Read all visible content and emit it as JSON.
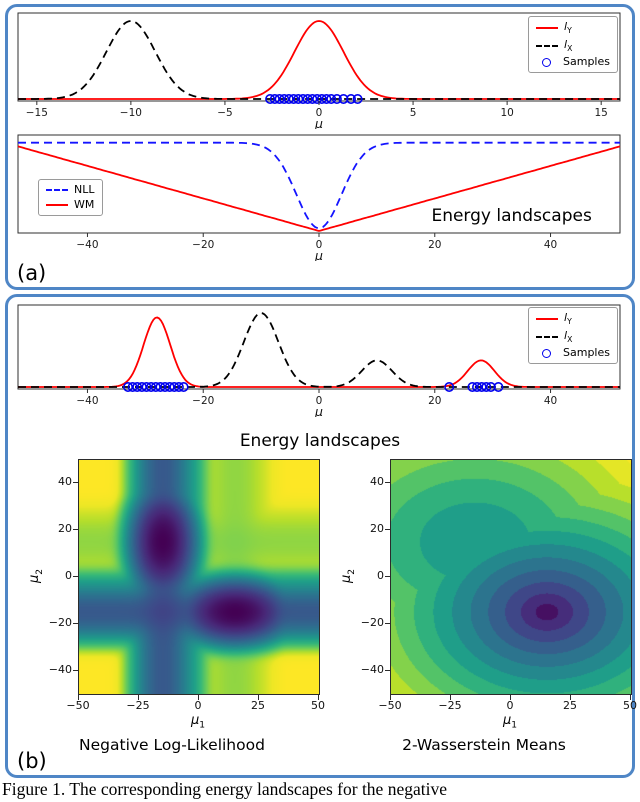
{
  "figure": {
    "panel_a_label": "(a)",
    "panel_b_label": "(b)",
    "energy_landscapes_title": "Energy landscapes",
    "caption": "Figure 1. The corresponding energy landscapes for the negative"
  },
  "colors": {
    "panel_border": "#4f86c6",
    "series_red": "#ff0000",
    "series_blue": "#0000ff",
    "series_black": "#000000",
    "colormap": "viridis"
  },
  "chart_data": [
    {
      "id": "a-densities",
      "type": "line",
      "xlabel": "μ",
      "xlim": [
        -16,
        16
      ],
      "xticks": [
        -15,
        -10,
        -5,
        0,
        5,
        10,
        15
      ],
      "series": [
        {
          "name": "lY",
          "color": "#ff0000",
          "dash": false,
          "gaussians": [
            {
              "mean": 0,
              "std": 1.3,
              "amp": 1.0
            }
          ]
        },
        {
          "name": "lX",
          "color": "#000000",
          "dash": true,
          "gaussians": [
            {
              "mean": -10,
              "std": 1.3,
              "amp": 1.0
            }
          ]
        }
      ],
      "sample_color": "#0000ee",
      "samples": [
        -2.6,
        -2.35,
        -2.1,
        -1.85,
        -1.6,
        -1.35,
        -1.1,
        -0.85,
        -0.6,
        -0.35,
        -0.1,
        0.15,
        0.4,
        0.65,
        0.95,
        1.3,
        1.7,
        2.05
      ],
      "legend": [
        {
          "label": "l",
          "sub": "Y",
          "italic": true,
          "marker": "line",
          "dash": false,
          "color": "#ff0000"
        },
        {
          "label": "l",
          "sub": "X",
          "italic": true,
          "marker": "line",
          "dash": true,
          "color": "#000000"
        },
        {
          "label": "Samples",
          "italic": false,
          "marker": "circle",
          "color": "#0000ee"
        }
      ]
    },
    {
      "id": "a-energy",
      "type": "line",
      "xlabel": "μ",
      "xlim": [
        -52,
        52
      ],
      "xticks": [
        -40,
        -20,
        0,
        20,
        40
      ],
      "series": [
        {
          "name": "NLL",
          "color": "#1414ff",
          "dash": true,
          "fn": {
            "kind": "well",
            "top": 0.96,
            "bottom": 0.03,
            "half_width": 5.5
          }
        },
        {
          "name": "WM",
          "color": "#ff0000",
          "dash": false,
          "fn": {
            "kind": "vee",
            "end": 0.92
          }
        }
      ],
      "legend": [
        {
          "label": "NLL",
          "italic": false,
          "marker": "line",
          "dash": true,
          "color": "#1414ff"
        },
        {
          "label": "WM",
          "italic": false,
          "marker": "line",
          "dash": false,
          "color": "#ff0000"
        }
      ],
      "annotation": {
        "text": "Energy landscapes",
        "fx": 0.82,
        "fy": 0.88,
        "size": 17
      }
    },
    {
      "id": "b-densities",
      "type": "line",
      "xlabel": "μ",
      "xlim": [
        -52,
        52
      ],
      "xticks": [
        -40,
        -20,
        0,
        20,
        40
      ],
      "series": [
        {
          "name": "lY",
          "color": "#ff0000",
          "dash": false,
          "gaussians": [
            {
              "mean": -28,
              "std": 2.3,
              "amp": 0.94
            },
            {
              "mean": 28,
              "std": 2.3,
              "amp": 0.36
            }
          ]
        },
        {
          "name": "lX",
          "color": "#000000",
          "dash": true,
          "gaussians": [
            {
              "mean": -10,
              "std": 3.0,
              "amp": 1.0
            },
            {
              "mean": 10,
              "std": 2.6,
              "amp": 0.36
            }
          ]
        }
      ],
      "sample_color": "#0000ee",
      "samples": [
        -33,
        -32.2,
        -31.4,
        -30.6,
        -29.8,
        -29,
        -28.2,
        -27.4,
        -26.6,
        -25.8,
        -25,
        -24.2,
        -23.4,
        22.5,
        26.5,
        27.3,
        28.1,
        28.9,
        29.7,
        31
      ],
      "legend": [
        {
          "label": "l",
          "sub": "Y",
          "italic": true,
          "marker": "line",
          "dash": false,
          "color": "#ff0000"
        },
        {
          "label": "l",
          "sub": "X",
          "italic": true,
          "marker": "line",
          "dash": true,
          "color": "#000000"
        },
        {
          "label": "Samples",
          "italic": false,
          "marker": "circle",
          "color": "#0000ee"
        }
      ]
    },
    {
      "id": "nll-heatmap",
      "type": "heatmap",
      "title": "Negative Log-Likelihood",
      "xlabel": {
        "base": "μ",
        "sub": "1"
      },
      "ylabel": {
        "base": "μ",
        "sub": "2"
      },
      "xlim": [
        -50,
        50
      ],
      "ylim": [
        -50,
        50
      ],
      "xticks": [
        -50,
        -25,
        0,
        25,
        50
      ],
      "yticks": [
        -40,
        -20,
        0,
        20,
        40
      ],
      "model": {
        "kind": "nll",
        "points": [
          {
            "x": -15,
            "w": 0.75
          },
          {
            "x": 15,
            "w": 0.25
          }
        ],
        "sigma": 5,
        "floor": 0.0002
      }
    },
    {
      "id": "wm-heatmap",
      "type": "heatmap",
      "title": "2-Wasserstein Means",
      "xlabel": {
        "base": "μ",
        "sub": "1"
      },
      "ylabel": {
        "base": "μ",
        "sub": "2"
      },
      "xlim": [
        -50,
        50
      ],
      "ylim": [
        -50,
        50
      ],
      "xticks": [
        -50,
        -25,
        0,
        25,
        50
      ],
      "yticks": [
        -40,
        -20,
        0,
        20,
        40
      ],
      "model": {
        "kind": "wasserstein",
        "w1": 0.35,
        "w2": 0.65,
        "minima": [
          {
            "x": 15,
            "y": -15,
            "offset": 0
          },
          {
            "x": -15,
            "y": 15,
            "offset": 600
          }
        ],
        "scale": 58,
        "gamma": 0.85,
        "levels": 13
      }
    }
  ]
}
